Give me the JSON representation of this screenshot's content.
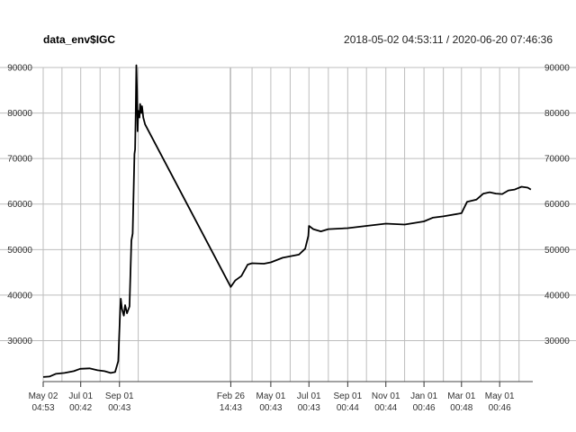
{
  "chart_data": {
    "type": "line",
    "title": "data_env$IGC",
    "date_range": "2018-05-02 04:53:11 / 2020-06-20 07:46:36",
    "ylim": [
      21000,
      90000
    ],
    "y_ticks": [
      30000,
      40000,
      50000,
      60000,
      70000,
      80000,
      90000
    ],
    "grid": true,
    "x_ticks": [
      {
        "x": "2018-05-02",
        "line1": "May 02",
        "line2": "04:53"
      },
      {
        "x": "2018-07-01",
        "line1": "Jul 01",
        "line2": "00:42"
      },
      {
        "x": "2018-09-01",
        "line1": "Sep 01",
        "line2": "00:43"
      },
      {
        "x": "2019-02-26",
        "line1": "Feb 26",
        "line2": "14:43"
      },
      {
        "x": "2019-05-01",
        "line1": "May 01",
        "line2": "00:43"
      },
      {
        "x": "2019-07-01",
        "line1": "Jul 01",
        "line2": "00:43"
      },
      {
        "x": "2019-09-01",
        "line1": "Sep 01",
        "line2": "00:44"
      },
      {
        "x": "2019-11-01",
        "line1": "Nov 01",
        "line2": "00:44"
      },
      {
        "x": "2020-01-01",
        "line1": "Jan 01",
        "line2": "00:46"
      },
      {
        "x": "2020-03-01",
        "line1": "Mar 01",
        "line2": "00:48"
      },
      {
        "x": "2020-05-01",
        "line1": "May 01",
        "line2": "00:46"
      }
    ],
    "minor_grid_dates": [
      "2018-06-01",
      "2018-08-01",
      "2018-10-01",
      "2019-02-25",
      "2019-04-01",
      "2019-06-01",
      "2019-08-01",
      "2019-10-01",
      "2019-12-01",
      "2020-02-01",
      "2020-04-01",
      "2020-06-01"
    ],
    "series": [
      {
        "color": "#000000",
        "points": [
          [
            "2018-05-02",
            22000
          ],
          [
            "2018-05-12",
            22100
          ],
          [
            "2018-05-22",
            22700
          ],
          [
            "2018-06-05",
            22900
          ],
          [
            "2018-06-20",
            23300
          ],
          [
            "2018-06-30",
            23800
          ],
          [
            "2018-07-15",
            23900
          ],
          [
            "2018-07-28",
            23500
          ],
          [
            "2018-08-08",
            23300
          ],
          [
            "2018-08-18",
            22900
          ],
          [
            "2018-08-25",
            23100
          ],
          [
            "2018-08-30",
            25500
          ],
          [
            "2018-09-02",
            36500
          ],
          [
            "2018-09-03",
            39200
          ],
          [
            "2018-09-05",
            37000
          ],
          [
            "2018-09-08",
            35500
          ],
          [
            "2018-09-10",
            37800
          ],
          [
            "2018-09-13",
            36000
          ],
          [
            "2018-09-17",
            37500
          ],
          [
            "2018-09-20",
            52000
          ],
          [
            "2018-09-22",
            53500
          ],
          [
            "2018-09-25",
            71000
          ],
          [
            "2018-09-26",
            72000
          ],
          [
            "2018-09-27",
            80000
          ],
          [
            "2018-09-28",
            90500
          ],
          [
            "2018-09-29",
            85000
          ],
          [
            "2018-09-30",
            76000
          ],
          [
            "2018-10-01",
            80500
          ],
          [
            "2018-10-03",
            79000
          ],
          [
            "2018-10-04",
            82000
          ],
          [
            "2018-10-06",
            80000
          ],
          [
            "2018-10-07",
            81500
          ],
          [
            "2018-10-09",
            79000
          ],
          [
            "2018-10-12",
            77500
          ],
          [
            "2019-02-26",
            41800
          ],
          [
            "2019-03-05",
            43200
          ],
          [
            "2019-03-15",
            44200
          ],
          [
            "2019-03-25",
            46700
          ],
          [
            "2019-04-01",
            47000
          ],
          [
            "2019-04-20",
            46900
          ],
          [
            "2019-05-01",
            47200
          ],
          [
            "2019-05-20",
            48200
          ],
          [
            "2019-06-15",
            48900
          ],
          [
            "2019-06-25",
            50200
          ],
          [
            "2019-06-30",
            53000
          ],
          [
            "2019-07-01",
            55200
          ],
          [
            "2019-07-08",
            54500
          ],
          [
            "2019-07-20",
            54000
          ],
          [
            "2019-08-01",
            54500
          ],
          [
            "2019-09-01",
            54700
          ],
          [
            "2019-10-01",
            55200
          ],
          [
            "2019-11-01",
            55700
          ],
          [
            "2019-12-01",
            55500
          ],
          [
            "2020-01-01",
            56200
          ],
          [
            "2020-01-15",
            57000
          ],
          [
            "2020-02-01",
            57300
          ],
          [
            "2020-03-01",
            58000
          ],
          [
            "2020-03-10",
            60500
          ],
          [
            "2020-03-25",
            61000
          ],
          [
            "2020-04-05",
            62300
          ],
          [
            "2020-04-15",
            62600
          ],
          [
            "2020-04-25",
            62300
          ],
          [
            "2020-05-05",
            62200
          ],
          [
            "2020-05-15",
            63000
          ],
          [
            "2020-05-25",
            63200
          ],
          [
            "2020-06-05",
            63800
          ],
          [
            "2020-06-15",
            63600
          ],
          [
            "2020-06-20",
            63200
          ]
        ]
      }
    ]
  }
}
